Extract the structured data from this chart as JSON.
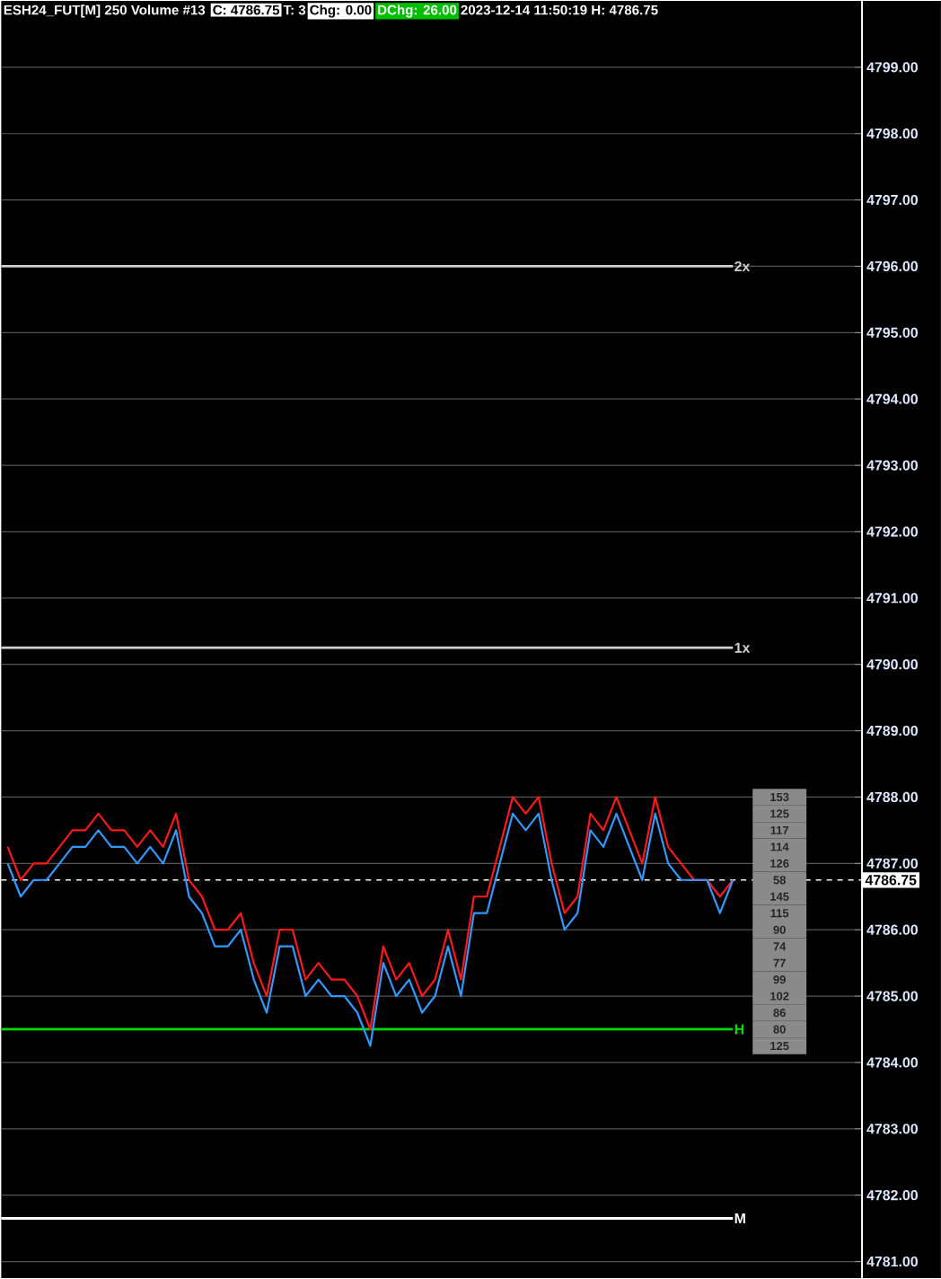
{
  "chart_data": {
    "type": "line",
    "title": "ESH24_FUT[M] 250 Volume #13",
    "annotations": [
      "C: 4786.75",
      "T: 3",
      "Chg: 0.00",
      "DChg: 26.00",
      "2023-12-14 11:50:19 H: 4786.75",
      "153",
      "125",
      "117",
      "114",
      "126",
      "58",
      "145",
      "115",
      "90",
      "74",
      "77",
      "99",
      "102",
      "86",
      "80",
      "125"
    ],
    "categories": [
      null,
      null,
      null,
      null,
      null,
      null,
      null,
      null,
      null,
      null,
      null,
      null,
      null,
      null,
      null,
      null,
      null,
      null,
      null,
      null,
      null,
      null,
      null,
      null,
      null,
      null,
      null,
      null,
      null,
      null,
      null,
      null,
      null,
      null,
      null,
      null,
      null,
      null,
      null,
      null,
      null,
      null,
      null,
      null,
      null,
      null,
      null,
      null,
      null,
      null,
      null,
      null,
      null,
      null,
      null,
      null,
      null
    ],
    "series": [
      {
        "color": "#ff1a1a",
        "values": [
          4787.25,
          4786.75,
          4787.0,
          4787.0,
          4787.25,
          4787.5,
          4787.5,
          4787.75,
          4787.5,
          4787.5,
          4787.25,
          4787.5,
          4787.25,
          4787.75,
          4786.75,
          4786.5,
          4786.0,
          4786.0,
          4786.25,
          4785.5,
          4785.0,
          4786.0,
          4786.0,
          4785.25,
          4785.5,
          4785.25,
          4785.25,
          4785.0,
          4784.5,
          4785.75,
          4785.25,
          4785.5,
          4785.0,
          4785.25,
          4786.0,
          4785.25,
          4786.5,
          4786.5,
          4787.25,
          4788.0,
          4787.75,
          4788.0,
          4787.0,
          4786.25,
          4786.5,
          4787.75,
          4787.5,
          4788.0,
          4787.5,
          4787.0,
          4788.0,
          4787.25,
          4787.0,
          4786.75,
          4786.75,
          4786.5,
          4786.75
        ]
      },
      {
        "color": "#3399ff",
        "values": [
          4787.0,
          4786.5,
          4786.75,
          4786.75,
          4787.0,
          4787.25,
          4787.25,
          4787.5,
          4787.25,
          4787.25,
          4787.0,
          4787.25,
          4787.0,
          4787.5,
          4786.5,
          4786.25,
          4785.75,
          4785.75,
          4786.0,
          4785.25,
          4784.75,
          4785.75,
          4785.75,
          4785.0,
          4785.25,
          4785.0,
          4785.0,
          4784.75,
          4784.25,
          4785.5,
          4785.0,
          4785.25,
          4784.75,
          4785.0,
          4785.75,
          4785.0,
          4786.25,
          4786.25,
          4787.0,
          4787.75,
          4787.5,
          4787.75,
          4786.75,
          4786.0,
          4786.25,
          4787.5,
          4787.25,
          4787.75,
          4787.25,
          4786.75,
          4787.75,
          4787.0,
          4786.75,
          4786.75,
          4786.75,
          4786.25,
          4786.75
        ]
      }
    ],
    "ylim": [
      4780.75,
      4800.0
    ],
    "yticks": [
      {
        "value": 4781,
        "label": "4781.00"
      },
      {
        "value": 4782,
        "label": "4782.00"
      },
      {
        "value": 4783,
        "label": "4783.00"
      },
      {
        "value": 4784,
        "label": "4784.00"
      },
      {
        "value": 4785,
        "label": "4785.00"
      },
      {
        "value": 4786,
        "label": "4786.00"
      },
      {
        "value": 4787,
        "label": "4787.00"
      },
      {
        "value": 4788,
        "label": "4788.00"
      },
      {
        "value": 4789,
        "label": "4789.00"
      },
      {
        "value": 4790,
        "label": "4790.00"
      },
      {
        "value": 4791,
        "label": "4791.00"
      },
      {
        "value": 4792,
        "label": "4792.00"
      },
      {
        "value": 4793,
        "label": "4793.00"
      },
      {
        "value": 4794,
        "label": "4794.00"
      },
      {
        "value": 4795,
        "label": "4795.00"
      },
      {
        "value": 4796,
        "label": "4796.00"
      },
      {
        "value": 4797,
        "label": "4797.00"
      },
      {
        "value": 4798,
        "label": "4798.00"
      },
      {
        "value": 4799,
        "label": "4799.00"
      }
    ],
    "grid": "y",
    "tick_labels": "y",
    "ref_lines": [
      {
        "axis": "y",
        "value": 4796.0,
        "label": "2x",
        "color": "#d0d0d0"
      },
      {
        "axis": "y",
        "value": 4790.25,
        "label": "1x",
        "color": "#d0d0d0"
      },
      {
        "axis": "y",
        "value": 4784.5,
        "label": "H",
        "color": "#00e000"
      },
      {
        "axis": "y",
        "value": 4781.65,
        "label": "M",
        "color": "#ffffff"
      },
      {
        "axis": "y",
        "value": 4786.75,
        "label": "4786.75",
        "color": "#ffffff",
        "line_style": "dashed"
      }
    ]
  }
}
